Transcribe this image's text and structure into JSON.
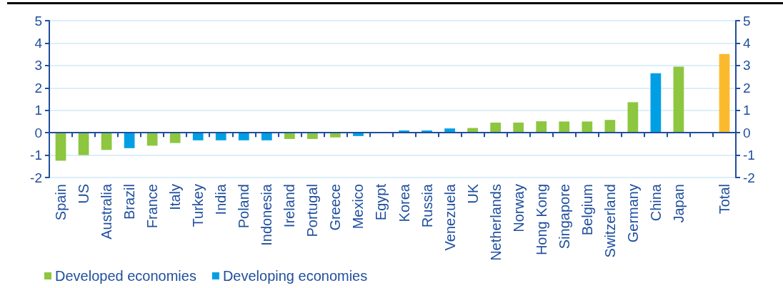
{
  "chart_data": {
    "type": "bar",
    "categories": [
      "Spain",
      "US",
      "Australia",
      "Brazil",
      "France",
      "Italy",
      "Turkey",
      "India",
      "Poland",
      "Indonesia",
      "Ireland",
      "Portugal",
      "Greece",
      "Mexico",
      "Egypt",
      "Korea",
      "Russia",
      "Venezuela",
      "UK",
      "Netherlands",
      "Norway",
      "Hong Kong",
      "Singapore",
      "Belgium",
      "Switzerland",
      "Germany",
      "China",
      "Japan",
      null,
      "Total"
    ],
    "series": [
      {
        "name": "Developed economies",
        "color": "#8dc63f",
        "values": [
          -1.25,
          -1.0,
          -0.77,
          null,
          -0.58,
          -0.46,
          null,
          null,
          null,
          null,
          -0.28,
          -0.28,
          -0.21,
          null,
          null,
          null,
          null,
          null,
          0.21,
          0.45,
          0.45,
          0.51,
          0.5,
          0.5,
          0.57,
          1.36,
          null,
          2.95,
          null,
          null
        ]
      },
      {
        "name": "Developing economies",
        "color": "#009fe3",
        "values": [
          null,
          null,
          null,
          -0.69,
          null,
          null,
          -0.34,
          -0.34,
          -0.34,
          -0.34,
          null,
          null,
          null,
          -0.15,
          0.03,
          0.1,
          0.1,
          0.19,
          null,
          null,
          null,
          null,
          null,
          null,
          null,
          null,
          2.65,
          null,
          null,
          null
        ]
      },
      {
        "color": "#fbba2d",
        "values": [
          null,
          null,
          null,
          null,
          null,
          null,
          null,
          null,
          null,
          null,
          null,
          null,
          null,
          null,
          null,
          null,
          null,
          null,
          null,
          null,
          null,
          null,
          null,
          null,
          null,
          null,
          null,
          null,
          null,
          3.51
        ]
      }
    ],
    "stacked": true,
    "ylim": [
      -2,
      5
    ],
    "yticks": [
      -2,
      -1,
      0,
      1,
      2,
      3,
      4,
      5
    ],
    "y2lim": [
      -2,
      5
    ],
    "y2ticks": [
      -2,
      -1,
      0,
      1,
      2,
      3,
      4,
      5
    ],
    "ref_lines": [
      {
        "axis": "y",
        "value": 0,
        "color": "#1f4e9d"
      }
    ],
    "grid": "y",
    "legend": "bottom left"
  }
}
